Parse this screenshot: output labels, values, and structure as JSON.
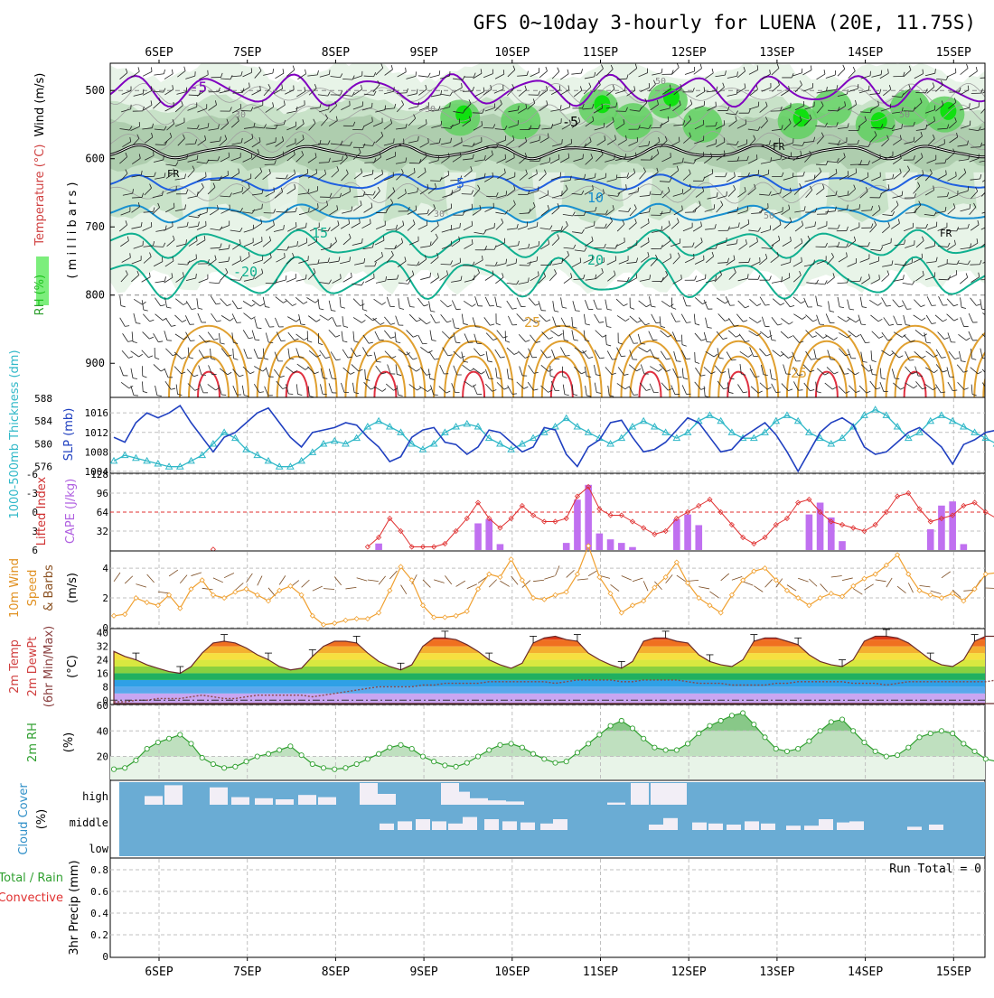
{
  "title": "GFS 0~10day 3-hourly for LUENA (20E, 11.75S)",
  "run_total_label": "Run Total = 0",
  "colors": {
    "temp_purple": "#8000c0",
    "temp_blue": "#2060e0",
    "temp_lightblue": "#1890d0",
    "temp_teal": "#10b090",
    "temp_orange": "#e0a030",
    "temp_red": "#e03040",
    "rh_light": "#e8f4e8",
    "rh_mid": "#c8e2c8",
    "rh_dark": "#a8c8a8",
    "rh_green": "#60d060",
    "rh_bright": "#10e010",
    "slp": "#2040c0",
    "thickness": "#30b8c8",
    "cape": "#c070f0",
    "lifted": "#e03030",
    "wind": "#f0a030",
    "rh2m": "#30a030",
    "cloud_bg": "#6aacd4",
    "cloud_bar": "#f2eef6"
  },
  "chart_data": [
    {
      "id": "upper-air",
      "type": "heatmap",
      "x_dates": [
        "6SEP",
        "7SEP",
        "8SEP",
        "9SEP",
        "10SEP",
        "11SEP",
        "12SEP",
        "13SEP",
        "14SEP",
        "15SEP"
      ],
      "ylabel_parts": [
        "RH (%)",
        "Temperature (°C)",
        "Wind (m/s)",
        "( m i l l i b a r s )"
      ],
      "yticks": [
        500,
        600,
        700,
        800,
        900
      ],
      "ylim": [
        460,
        950
      ],
      "contour_labels": [
        "-5",
        "FR",
        "FR",
        "FR",
        "5",
        "10",
        "15",
        "-20",
        "20",
        "25",
        "25",
        "30",
        "30",
        "30",
        "50",
        "50",
        "50",
        "-5"
      ]
    },
    {
      "id": "slp-thickness",
      "type": "line",
      "ylabel_left": "1000-500mb Thickness (dm)",
      "ylabel_right": "SLP (mb)",
      "yticks_left": [
        576,
        580,
        584,
        588
      ],
      "yticks_right": [
        1004,
        1008,
        1012,
        1016
      ],
      "ylim_left": [
        575,
        588
      ],
      "ylim_right": [
        1003.8,
        1019
      ],
      "series": [
        {
          "name": "SLP",
          "values": [
            1011,
            1010,
            1014,
            1016,
            1015,
            1016,
            1017.5,
            1014,
            1011,
            1008,
            1011,
            1012,
            1014,
            1016,
            1017,
            1014,
            1011,
            1009,
            1012,
            1012.5,
            1013,
            1014,
            1013.5,
            1011,
            1009,
            1006,
            1007,
            1011,
            1012.5,
            1013,
            1010,
            1009.5,
            1007.5,
            1009,
            1012.5,
            1012,
            1010,
            1008,
            1009,
            1013,
            1012.5,
            1007.5,
            1005,
            1009,
            1010.5,
            1014,
            1014.5,
            1011,
            1008,
            1008.5,
            1010,
            1012.5,
            1015,
            1014,
            1011,
            1008,
            1008.5,
            1011,
            1012.5,
            1014,
            1011.5,
            1008,
            1004,
            1008,
            1012,
            1014,
            1015,
            1013.5,
            1009,
            1007.5,
            1008,
            1010,
            1012,
            1013,
            1011,
            1009,
            1005.5,
            1009.5,
            1010.5,
            1012,
            1012.5,
            1011,
            1007,
            1007.5,
            1009.5,
            1013.5
          ]
        },
        {
          "name": "Thickness",
          "values": [
            577,
            578,
            577.5,
            577,
            576.5,
            576,
            576,
            577,
            578,
            580,
            582,
            581,
            579,
            578,
            577,
            576,
            576,
            577,
            578.5,
            580,
            580.5,
            580,
            581,
            583,
            584,
            583,
            582,
            580,
            579,
            580,
            582,
            583,
            583.5,
            583,
            581,
            580,
            579,
            580,
            581,
            582,
            583,
            584.5,
            583,
            582,
            581,
            580,
            581,
            583,
            584,
            583,
            582,
            581,
            582,
            584,
            585,
            584,
            582,
            581,
            581,
            582,
            584,
            585,
            584,
            582,
            581,
            580,
            581,
            583,
            585,
            586,
            585,
            583,
            581,
            582,
            584,
            585,
            584,
            583,
            582,
            581,
            580,
            579
          ]
        }
      ]
    },
    {
      "id": "lifted-cape",
      "type": "bar",
      "ylabel_left": "Lifted Index",
      "ylabel_right": "CAPE (J/kg)",
      "yticks_left": [
        "-6",
        "-3",
        "0",
        "3",
        "6"
      ],
      "yticks_right": [
        32,
        64,
        96,
        128
      ],
      "ylim_left": [
        6,
        -6
      ],
      "ylim_right": [
        0,
        128
      ],
      "series": [
        {
          "name": "Lifted Index",
          "values": [
            null,
            null,
            null,
            null,
            null,
            null,
            null,
            null,
            null,
            5.9,
            null,
            null,
            null,
            null,
            null,
            null,
            null,
            null,
            null,
            null,
            null,
            null,
            null,
            5.5,
            4,
            1,
            3,
            5.5,
            5.5,
            5.5,
            5,
            3,
            1,
            -1.5,
            1,
            2.5,
            1,
            -1,
            0.5,
            1.5,
            1.5,
            1,
            -2.5,
            -4,
            -0.5,
            0.5,
            0.5,
            1.5,
            2.5,
            3.5,
            3,
            1,
            0,
            -1,
            -2,
            0,
            2,
            4,
            5,
            4,
            2,
            1,
            -1.5,
            -2,
            0,
            1.5,
            2,
            2.5,
            3,
            2,
            0,
            -2.5,
            -3,
            -0.5,
            1.5,
            1,
            0.5,
            -1,
            -1.5,
            0,
            1,
            2,
            3,
            2,
            2.5,
            4.5
          ]
        },
        {
          "name": "CAPE",
          "values": [
            0,
            0,
            0,
            0,
            0,
            0,
            0,
            0,
            0,
            0,
            0,
            0,
            0,
            0,
            0,
            0,
            0,
            0,
            0,
            0,
            0,
            0,
            0,
            0,
            11,
            0,
            0,
            0,
            0,
            0,
            0,
            0,
            0,
            45,
            52,
            10,
            0,
            0,
            0,
            0,
            0,
            12,
            85,
            110,
            28,
            18,
            12,
            5,
            0,
            0,
            0,
            52,
            60,
            42,
            0,
            0,
            0,
            0,
            0,
            0,
            0,
            0,
            0,
            60,
            80,
            55,
            15,
            0,
            0,
            0,
            0,
            0,
            0,
            0,
            35,
            75,
            82,
            10,
            0,
            0,
            0,
            0,
            0,
            45,
            70,
            35,
            20,
            0,
            0
          ]
        }
      ]
    },
    {
      "id": "wind-10m",
      "type": "line",
      "ylabel_parts": [
        "10m Wind",
        "Speed",
        "& Barbs",
        "(m/s)"
      ],
      "yticks": [
        0,
        2,
        4
      ],
      "ylim": [
        0,
        5.1
      ],
      "series": [
        {
          "name": "10m Wind Speed",
          "values": [
            0.8,
            0.9,
            2.0,
            1.7,
            1.5,
            2.2,
            1.3,
            2.6,
            3.2,
            2.2,
            2.0,
            2.4,
            2.6,
            2.2,
            1.8,
            2.5,
            2.8,
            2.2,
            0.8,
            0.2,
            0.3,
            0.5,
            0.6,
            0.6,
            1.0,
            2.5,
            4.1,
            3.2,
            1.5,
            0.7,
            0.7,
            0.8,
            1.1,
            2.6,
            3.6,
            3.4,
            4.6,
            3.2,
            2.0,
            1.9,
            2.2,
            2.4,
            3.6,
            5.5,
            3.4,
            2.3,
            1.0,
            1.5,
            1.8,
            2.7,
            3.4,
            4.4,
            3.0,
            2.0,
            1.5,
            1.0,
            2.2,
            3.2,
            3.8,
            4.0,
            3.2,
            2.5,
            2.0,
            1.5,
            2.0,
            2.3,
            2.1,
            2.8,
            3.3,
            3.6,
            4.2,
            4.9,
            3.6,
            2.5,
            2.2,
            2.0,
            2.3,
            1.8,
            2.6,
            3.6,
            3.7,
            3.2,
            2.0,
            2.7,
            2.6,
            2.6
          ]
        }
      ]
    },
    {
      "id": "temp-2m",
      "type": "area",
      "ylabel_parts": [
        "2m Temp",
        "2m DewPt",
        "(6hr Min/Max)",
        "(°C)"
      ],
      "yticks": [
        0,
        8,
        16,
        24,
        32,
        40
      ],
      "ylim": [
        -2,
        42
      ],
      "series": [
        {
          "name": "2m Temp",
          "values": [
            29,
            26,
            24,
            21,
            19,
            17,
            16,
            20,
            28,
            34,
            35,
            34,
            31,
            27,
            24,
            20,
            18,
            19,
            26,
            32,
            35,
            35,
            34,
            28,
            23,
            20,
            18,
            21,
            32,
            37,
            37,
            36,
            33,
            29,
            24,
            21,
            19,
            22,
            34,
            37,
            38,
            36,
            35,
            28,
            24,
            21,
            19,
            23,
            35,
            37,
            37,
            35,
            34,
            27,
            23,
            21,
            20,
            24,
            35,
            37,
            37,
            35,
            33,
            27,
            23,
            21,
            20,
            24,
            35,
            38,
            38,
            37,
            34,
            29,
            24,
            21,
            20,
            24,
            35,
            38,
            38,
            37,
            33,
            28,
            25,
            22
          ]
        },
        {
          "name": "2m DewPt",
          "values": [
            -1,
            -1,
            0,
            0,
            1,
            1,
            1,
            2,
            3,
            2,
            1,
            1,
            2,
            3,
            3,
            3,
            3,
            3,
            2,
            3,
            4,
            5,
            6,
            7,
            8,
            8,
            8,
            8,
            9,
            9,
            10,
            10,
            10,
            10,
            11,
            11,
            11,
            11,
            11,
            11,
            10,
            11,
            12,
            12,
            12,
            12,
            11,
            11,
            12,
            12,
            12,
            12,
            11,
            10,
            10,
            10,
            9,
            9,
            9,
            9,
            10,
            10,
            11,
            11,
            11,
            11,
            11,
            10,
            10,
            10,
            9,
            10,
            11,
            11,
            11,
            11,
            11,
            11,
            11,
            11,
            12,
            12,
            12,
            12,
            12,
            12
          ]
        }
      ]
    },
    {
      "id": "rh-2m",
      "type": "area",
      "ylabel_parts": [
        "2m RH",
        "(%)"
      ],
      "yticks": [
        20,
        40,
        60
      ],
      "ylim": [
        2,
        60
      ],
      "series": [
        {
          "name": "2m RH",
          "values": [
            10,
            11,
            17,
            26,
            31,
            34,
            37,
            30,
            19,
            14,
            11,
            12,
            16,
            20,
            22,
            25,
            28,
            21,
            14,
            11,
            10,
            11,
            14,
            18,
            22,
            27,
            29,
            26,
            20,
            16,
            13,
            12,
            15,
            20,
            25,
            29,
            30,
            27,
            22,
            18,
            15,
            16,
            23,
            30,
            37,
            44,
            48,
            42,
            34,
            27,
            25,
            25,
            30,
            38,
            44,
            48,
            52,
            54,
            45,
            35,
            26,
            24,
            26,
            32,
            40,
            47,
            49,
            40,
            31,
            24,
            20,
            21,
            27,
            35,
            38,
            40,
            38,
            30,
            24,
            18,
            16,
            18,
            22,
            29,
            38,
            44,
            50,
            46,
            40
          ]
        }
      ]
    },
    {
      "id": "cloud",
      "type": "bar",
      "ylabel_parts": [
        "Cloud Cover",
        "(%)"
      ],
      "ylevels": [
        "high",
        "middle",
        "low"
      ]
    },
    {
      "id": "precip",
      "type": "bar",
      "ylabel_parts": [
        "3hr Precip (mm)",
        "Total / Rain",
        "Convective"
      ],
      "yticks": [
        "0",
        "0.2",
        "0.4",
        "0.6",
        "0.8"
      ],
      "ylim": [
        0,
        0.9
      ],
      "values": []
    }
  ]
}
